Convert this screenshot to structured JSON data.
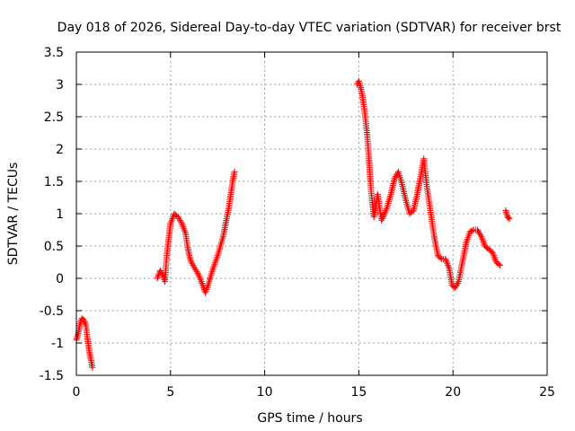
{
  "chart_data": {
    "type": "scatter",
    "title": "Day 018 of 2026, Sidereal Day-to-day VTEC variation (SDTVAR) for receiver brst",
    "xlabel": "GPS time / hours",
    "ylabel": "SDTVAR / TECUs",
    "xlim": [
      0,
      25
    ],
    "ylim": [
      -1.5,
      3.5
    ],
    "grid": true,
    "marker": "plus",
    "color": "#ff0000",
    "x_ticks": [
      0,
      5,
      10,
      15,
      20,
      25
    ],
    "x_tick_labels": [
      "0",
      "5",
      "10",
      "15",
      "20",
      "25"
    ],
    "y_ticks": [
      -1.5,
      -1,
      -0.5,
      0,
      0.5,
      1,
      1.5,
      2,
      2.5,
      3,
      3.5
    ],
    "y_tick_labels": [
      "-1.5",
      "-1",
      "-0.5",
      "0",
      "0.5",
      "1",
      "1.5",
      "2",
      "2.5",
      "3",
      "3.5"
    ],
    "series": [
      {
        "name": "SDTVAR",
        "segments": [
          [
            [
              0.0,
              -0.95
            ],
            [
              0.1,
              -0.85
            ],
            [
              0.2,
              -0.7
            ],
            [
              0.3,
              -0.62
            ],
            [
              0.4,
              -0.65
            ],
            [
              0.5,
              -0.72
            ],
            [
              0.6,
              -0.95
            ],
            [
              0.7,
              -1.15
            ],
            [
              0.8,
              -1.3
            ],
            [
              0.85,
              -1.38
            ]
          ],
          [
            [
              4.3,
              0.0
            ],
            [
              4.45,
              0.12
            ],
            [
              4.6,
              0.05
            ],
            [
              4.7,
              -0.05
            ],
            [
              4.8,
              0.35
            ],
            [
              4.9,
              0.6
            ],
            [
              5.0,
              0.85
            ],
            [
              5.2,
              1.0
            ],
            [
              5.4,
              0.95
            ],
            [
              5.6,
              0.85
            ],
            [
              5.8,
              0.7
            ],
            [
              5.9,
              0.5
            ],
            [
              6.0,
              0.35
            ],
            [
              6.1,
              0.25
            ],
            [
              6.3,
              0.15
            ],
            [
              6.5,
              0.05
            ],
            [
              6.7,
              -0.1
            ],
            [
              6.85,
              -0.22
            ],
            [
              7.0,
              -0.1
            ],
            [
              7.2,
              0.1
            ],
            [
              7.5,
              0.35
            ],
            [
              7.8,
              0.65
            ],
            [
              8.0,
              0.95
            ],
            [
              8.1,
              1.1
            ],
            [
              8.2,
              1.3
            ],
            [
              8.3,
              1.5
            ],
            [
              8.4,
              1.65
            ]
          ],
          [
            [
              14.9,
              3.0
            ],
            [
              15.0,
              3.05
            ],
            [
              15.1,
              2.95
            ],
            [
              15.2,
              2.8
            ],
            [
              15.3,
              2.6
            ],
            [
              15.45,
              2.2
            ],
            [
              15.55,
              1.8
            ],
            [
              15.6,
              1.55
            ],
            [
              15.7,
              1.2
            ],
            [
              15.8,
              0.95
            ],
            [
              15.9,
              1.1
            ],
            [
              16.0,
              1.3
            ],
            [
              16.1,
              1.1
            ],
            [
              16.2,
              0.9
            ],
            [
              16.3,
              0.95
            ],
            [
              16.5,
              1.1
            ],
            [
              16.7,
              1.3
            ],
            [
              16.9,
              1.55
            ],
            [
              17.1,
              1.65
            ],
            [
              17.3,
              1.45
            ],
            [
              17.5,
              1.2
            ],
            [
              17.7,
              1.0
            ],
            [
              17.9,
              1.05
            ],
            [
              18.1,
              1.3
            ],
            [
              18.3,
              1.6
            ],
            [
              18.45,
              1.85
            ],
            [
              18.6,
              1.45
            ],
            [
              18.8,
              1.05
            ],
            [
              19.0,
              0.65
            ],
            [
              19.2,
              0.35
            ],
            [
              19.4,
              0.3
            ],
            [
              19.6,
              0.3
            ],
            [
              19.8,
              0.15
            ],
            [
              19.95,
              -0.1
            ],
            [
              20.1,
              -0.15
            ],
            [
              20.3,
              -0.05
            ],
            [
              20.5,
              0.25
            ],
            [
              20.7,
              0.55
            ],
            [
              20.9,
              0.72
            ],
            [
              21.1,
              0.75
            ],
            [
              21.3,
              0.75
            ],
            [
              21.5,
              0.65
            ],
            [
              21.7,
              0.5
            ],
            [
              21.9,
              0.45
            ],
            [
              22.1,
              0.4
            ],
            [
              22.3,
              0.25
            ],
            [
              22.5,
              0.2
            ]
          ],
          [
            [
              22.8,
              1.05
            ],
            [
              22.9,
              0.95
            ],
            [
              23.0,
              0.92
            ]
          ]
        ]
      }
    ]
  }
}
